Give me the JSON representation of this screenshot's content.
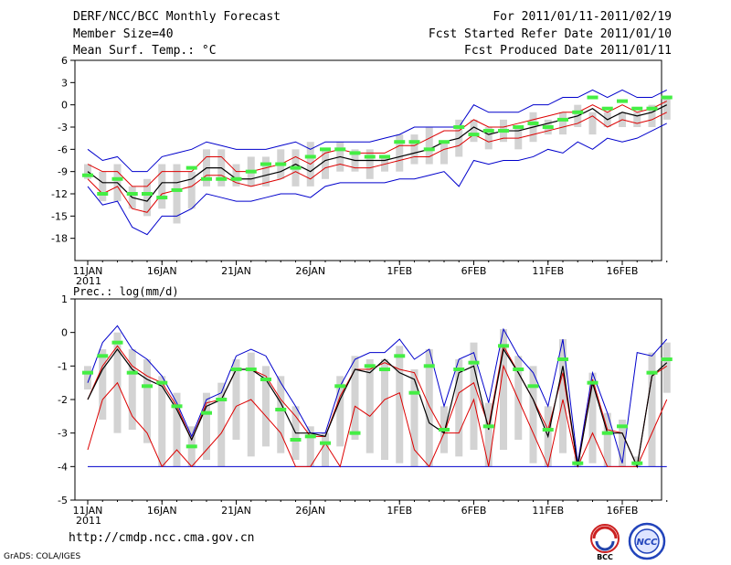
{
  "header": {
    "title": "DERF/NCC/BCC Monthly Forecast",
    "member_size": "Member Size=40",
    "variable": "Mean Surf. Temp.: °C",
    "period": "For 2011/01/11-2011/02/19",
    "started": "Fcst Started Refer Date 2011/01/10",
    "produced": "Fcst Produced Date 2011/01/11"
  },
  "footer": {
    "url": "http://cmdp.ncc.cma.gov.cn",
    "grads": "GrADS: COLA/IGES",
    "logo_bcc": "BCC",
    "logo_ncc": "NCC"
  },
  "colors": {
    "ensemble_max": "#0000cc",
    "ensemble_min": "#0000cc",
    "spread_upper": "#dd0000",
    "spread_lower": "#dd0000",
    "mean": "#000000",
    "median_marker": "#44ee44",
    "box": "#d3d3d3"
  },
  "chart_data": [
    {
      "type": "line",
      "panel": "temperature",
      "title": "",
      "ylabel": "Mean Surf. Temp.: °C",
      "ylim": [
        -21,
        6
      ],
      "yticks": [
        6,
        3,
        0,
        -3,
        -6,
        -9,
        -12,
        -15,
        -18
      ],
      "xtick_labels": [
        "11JAN\n2011",
        "16JAN",
        "21JAN",
        "26JAN",
        "1FEB",
        "6FEB",
        "11FEB",
        "16FEB"
      ],
      "xtick_days": [
        0,
        5,
        10,
        15,
        21,
        26,
        31,
        36
      ],
      "x_days": [
        0,
        1,
        2,
        3,
        4,
        5,
        6,
        7,
        8,
        9,
        10,
        11,
        12,
        13,
        14,
        15,
        16,
        17,
        18,
        19,
        20,
        21,
        22,
        23,
        24,
        25,
        26,
        27,
        28,
        29,
        30,
        31,
        32,
        33,
        34,
        35,
        36,
        37,
        38,
        39
      ],
      "series": [
        {
          "name": "max",
          "values": [
            -6,
            -7.5,
            -7,
            -9,
            -9,
            -7,
            -6.5,
            -6,
            -5,
            -5.5,
            -6,
            -6,
            -6,
            -5.5,
            -5,
            -6,
            -5,
            -5,
            -5,
            -5,
            -4.5,
            -4,
            -3,
            -3,
            -3,
            -3,
            0,
            -1,
            -1,
            -1,
            0,
            0,
            1,
            1,
            2,
            1,
            2,
            1,
            1,
            2
          ]
        },
        {
          "name": "upper",
          "values": [
            -8,
            -9,
            -9,
            -11,
            -11,
            -9,
            -9,
            -9,
            -7,
            -7,
            -9,
            -9,
            -8.5,
            -8,
            -7,
            -8,
            -6.5,
            -6,
            -6.5,
            -6.5,
            -6.5,
            -5.5,
            -5.5,
            -4.5,
            -3.5,
            -3.5,
            -2,
            -3,
            -3,
            -2.5,
            -2,
            -1.5,
            -1,
            -1,
            0,
            -1,
            0,
            -1,
            -0.5,
            0.5
          ]
        },
        {
          "name": "mean",
          "values": [
            -9,
            -10.5,
            -10.5,
            -12.5,
            -13,
            -10.5,
            -10.5,
            -10,
            -8.5,
            -8.5,
            -10,
            -10,
            -9.5,
            -9,
            -8,
            -9,
            -7.5,
            -7,
            -7.5,
            -7.5,
            -7.5,
            -7,
            -6.5,
            -6,
            -5,
            -4.5,
            -3,
            -4,
            -3.5,
            -3.5,
            -3,
            -2.5,
            -2,
            -1.5,
            -0.5,
            -2,
            -1,
            -1.5,
            -1,
            0
          ]
        },
        {
          "name": "lower",
          "values": [
            -10,
            -12,
            -11,
            -14,
            -14.5,
            -12,
            -11.5,
            -11,
            -9.5,
            -9.5,
            -10.5,
            -11,
            -10.5,
            -10,
            -9,
            -10,
            -8.5,
            -8,
            -8.5,
            -8.5,
            -8,
            -7.5,
            -7,
            -7,
            -6,
            -5.5,
            -4,
            -5,
            -4.5,
            -4.5,
            -4,
            -3.5,
            -3,
            -2.5,
            -1.5,
            -3,
            -2,
            -2.5,
            -2,
            -1
          ]
        },
        {
          "name": "min",
          "values": [
            -11,
            -13.5,
            -13,
            -16.5,
            -17.5,
            -15,
            -15,
            -14,
            -12,
            -12.5,
            -13,
            -13,
            -12.5,
            -12,
            -12,
            -12.5,
            -11,
            -10.5,
            -10.5,
            -10.5,
            -10.5,
            -10,
            -10,
            -9.5,
            -9,
            -11,
            -7.5,
            -8,
            -7.5,
            -7.5,
            -7,
            -6,
            -6.5,
            -5,
            -6,
            -4.5,
            -5,
            -4.5,
            -3.5,
            -2.5
          ]
        },
        {
          "name": "median",
          "values": [
            -9.5,
            -12,
            -10,
            -12,
            -12,
            -12.5,
            -11.5,
            -8.5,
            -10,
            -10,
            -10,
            -9,
            -8,
            -8,
            -8.5,
            -7,
            -6,
            -6,
            -6.5,
            -7,
            -7,
            -5,
            -5,
            -6,
            -5,
            -3,
            -4,
            -3.5,
            -3.5,
            -3,
            -2.5,
            -3,
            -2,
            -1,
            1,
            -0.5,
            0.5,
            -0.5,
            -0.5,
            1
          ]
        },
        {
          "name": "box_high",
          "values": [
            -8,
            -9,
            -8,
            -11,
            -10,
            -8,
            -8,
            -9,
            -6,
            -6,
            -8,
            -7,
            -7,
            -6,
            -6,
            -5,
            -6,
            -5,
            -6,
            -6,
            -7,
            -4,
            -4,
            -3,
            -5,
            -2,
            -2,
            -3,
            -2,
            -3,
            -1,
            -2,
            -1,
            0,
            -1,
            -1,
            -1,
            -1,
            0,
            1
          ]
        },
        {
          "name": "box_low",
          "values": [
            -10,
            -13,
            -13,
            -14,
            -15,
            -14,
            -16,
            -14,
            -11,
            -11,
            -11,
            -11,
            -11,
            -10,
            -11,
            -11,
            -10,
            -9,
            -9,
            -10,
            -9,
            -9,
            -8,
            -8,
            -8,
            -7,
            -5,
            -6,
            -5,
            -6,
            -5,
            -4,
            -4,
            -3,
            -4,
            -3,
            -3,
            -3,
            -3,
            -2
          ]
        }
      ]
    },
    {
      "type": "line",
      "panel": "precipitation",
      "title": "Prec.: log(mm/d)",
      "ylabel": "Prec.: log(mm/d)",
      "ylim": [
        -5,
        1
      ],
      "yticks": [
        1,
        0,
        -1,
        -2,
        -3,
        -4,
        -5
      ],
      "xtick_labels": [
        "11JAN\n2011",
        "16JAN",
        "21JAN",
        "26JAN",
        "1FEB",
        "6FEB",
        "11FEB",
        "16FEB"
      ],
      "xtick_days": [
        0,
        5,
        10,
        15,
        21,
        26,
        31,
        36
      ],
      "x_days": [
        0,
        1,
        2,
        3,
        4,
        5,
        6,
        7,
        8,
        9,
        10,
        11,
        12,
        13,
        14,
        15,
        16,
        17,
        18,
        19,
        20,
        21,
        22,
        23,
        24,
        25,
        26,
        27,
        28,
        29,
        30,
        31,
        32,
        33,
        34,
        35,
        36,
        37,
        38,
        39
      ],
      "series": [
        {
          "name": "max",
          "values": [
            -1.5,
            -0.3,
            0.2,
            -0.5,
            -0.8,
            -1.3,
            -2.1,
            -3.1,
            -2,
            -1.8,
            -0.7,
            -0.5,
            -0.7,
            -1.5,
            -2.2,
            -3,
            -3,
            -1.6,
            -0.8,
            -0.6,
            -0.6,
            -0.2,
            -0.8,
            -0.5,
            -2.2,
            -0.8,
            -0.6,
            -2.1,
            0.1,
            -0.7,
            -1.2,
            -2.2,
            -0.2,
            -3.9,
            -1.2,
            -2.4,
            -3.9,
            -0.6,
            -0.7,
            -0.2
          ]
        },
        {
          "name": "upper",
          "values": [
            -2,
            -1,
            -0.4,
            -1,
            -1.3,
            -1.5,
            -2.2,
            -3.2,
            -2.1,
            -2,
            -1.1,
            -1.1,
            -1.3,
            -2,
            -2.5,
            -3.1,
            -3.1,
            -1.9,
            -1.1,
            -1.1,
            -0.9,
            -1.1,
            -1.2,
            -2.2,
            -3,
            -1.8,
            -1.5,
            -2.8,
            -0.4,
            -1.2,
            -2,
            -2.9,
            -1.2,
            -4,
            -1.4,
            -2.9,
            -3,
            -4,
            -1.3,
            -1
          ]
        },
        {
          "name": "mean",
          "values": [
            -2,
            -1.1,
            -0.5,
            -1.1,
            -1.4,
            -1.6,
            -2.3,
            -3.2,
            -2.2,
            -2,
            -1.1,
            -1.1,
            -1.4,
            -2.1,
            -3,
            -3,
            -3.1,
            -2,
            -1.1,
            -1.2,
            -0.8,
            -1.2,
            -1.4,
            -2.7,
            -3,
            -1.2,
            -1,
            -2.9,
            -0.5,
            -1.2,
            -2,
            -3.1,
            -1,
            -4,
            -1.5,
            -3,
            -3,
            -4,
            -1.3,
            -0.9
          ]
        },
        {
          "name": "lower",
          "values": [
            -3.5,
            -2,
            -1.5,
            -2.5,
            -3,
            -4,
            -3.5,
            -4,
            -3.5,
            -3,
            -2.2,
            -2,
            -2.5,
            -3,
            -4,
            -4,
            -3.3,
            -4,
            -2.2,
            -2.5,
            -2,
            -1.8,
            -3.5,
            -4,
            -3,
            -3,
            -2,
            -4,
            -1,
            -2,
            -3,
            -4,
            -2,
            -4,
            -3,
            -4,
            -4,
            -4,
            -3,
            -2
          ]
        },
        {
          "name": "median",
          "values": [
            -1.2,
            -0.7,
            -0.3,
            -1.2,
            -1.6,
            -1.5,
            -2.2,
            -3.4,
            -2.4,
            -2,
            -1.1,
            -1.1,
            -1.4,
            -2.3,
            -3.2,
            -3.1,
            -3.3,
            -1.6,
            -3,
            -1,
            -1.1,
            -0.7,
            -1.8,
            -1,
            -2.9,
            -1.1,
            -0.9,
            -2.8,
            -0.4,
            -1.1,
            -1.6,
            -2.9,
            -0.8,
            -3.9,
            -1.5,
            -3,
            -2.8,
            -3.9,
            -1.2,
            -0.8
          ]
        },
        {
          "name": "box_high",
          "values": [
            -1,
            -0.5,
            0,
            -0.5,
            -0.8,
            -1.3,
            -1.8,
            -2.8,
            -1.8,
            -1.5,
            -0.8,
            -0.6,
            -1,
            -1.3,
            -2.2,
            -2.8,
            -3,
            -1.3,
            -0.7,
            -0.8,
            -0.8,
            -0.4,
            -1.1,
            -0.5,
            -2.2,
            -0.8,
            -0.3,
            -2.1,
            0.1,
            -0.7,
            -1,
            -2.2,
            -0.2,
            -3.7,
            -1.2,
            -2.4,
            -2.6,
            -3.7,
            -0.6,
            -0.3
          ]
        },
        {
          "name": "box_low",
          "values": [
            -1.7,
            -2.6,
            -3,
            -2.9,
            -3.3,
            -4,
            -4,
            -4,
            -3.8,
            -4,
            -3.2,
            -3.7,
            -3.4,
            -3.6,
            -3.8,
            -4,
            -4,
            -3.4,
            -3.2,
            -3.6,
            -3.8,
            -3.9,
            -4,
            -4,
            -3.6,
            -3.7,
            -3.5,
            -4,
            -3.5,
            -3.2,
            -3.9,
            -4,
            -3.6,
            -4,
            -3.9,
            -4,
            -4,
            -4,
            -4,
            -1.8
          ]
        },
        {
          "name": "floor",
          "values": [
            -4,
            -4,
            -4,
            -4,
            -4,
            -4,
            -4,
            -4,
            -4,
            -4,
            -4,
            -4,
            -4,
            -4,
            -4,
            -4,
            -4,
            -4,
            -4,
            -4,
            -4,
            -4,
            -4,
            -4,
            -4,
            -4,
            -4,
            -4,
            -4,
            -4,
            -4,
            -4,
            -4,
            -4,
            -4,
            -4,
            -4,
            -4,
            -4,
            -4
          ]
        }
      ]
    }
  ]
}
